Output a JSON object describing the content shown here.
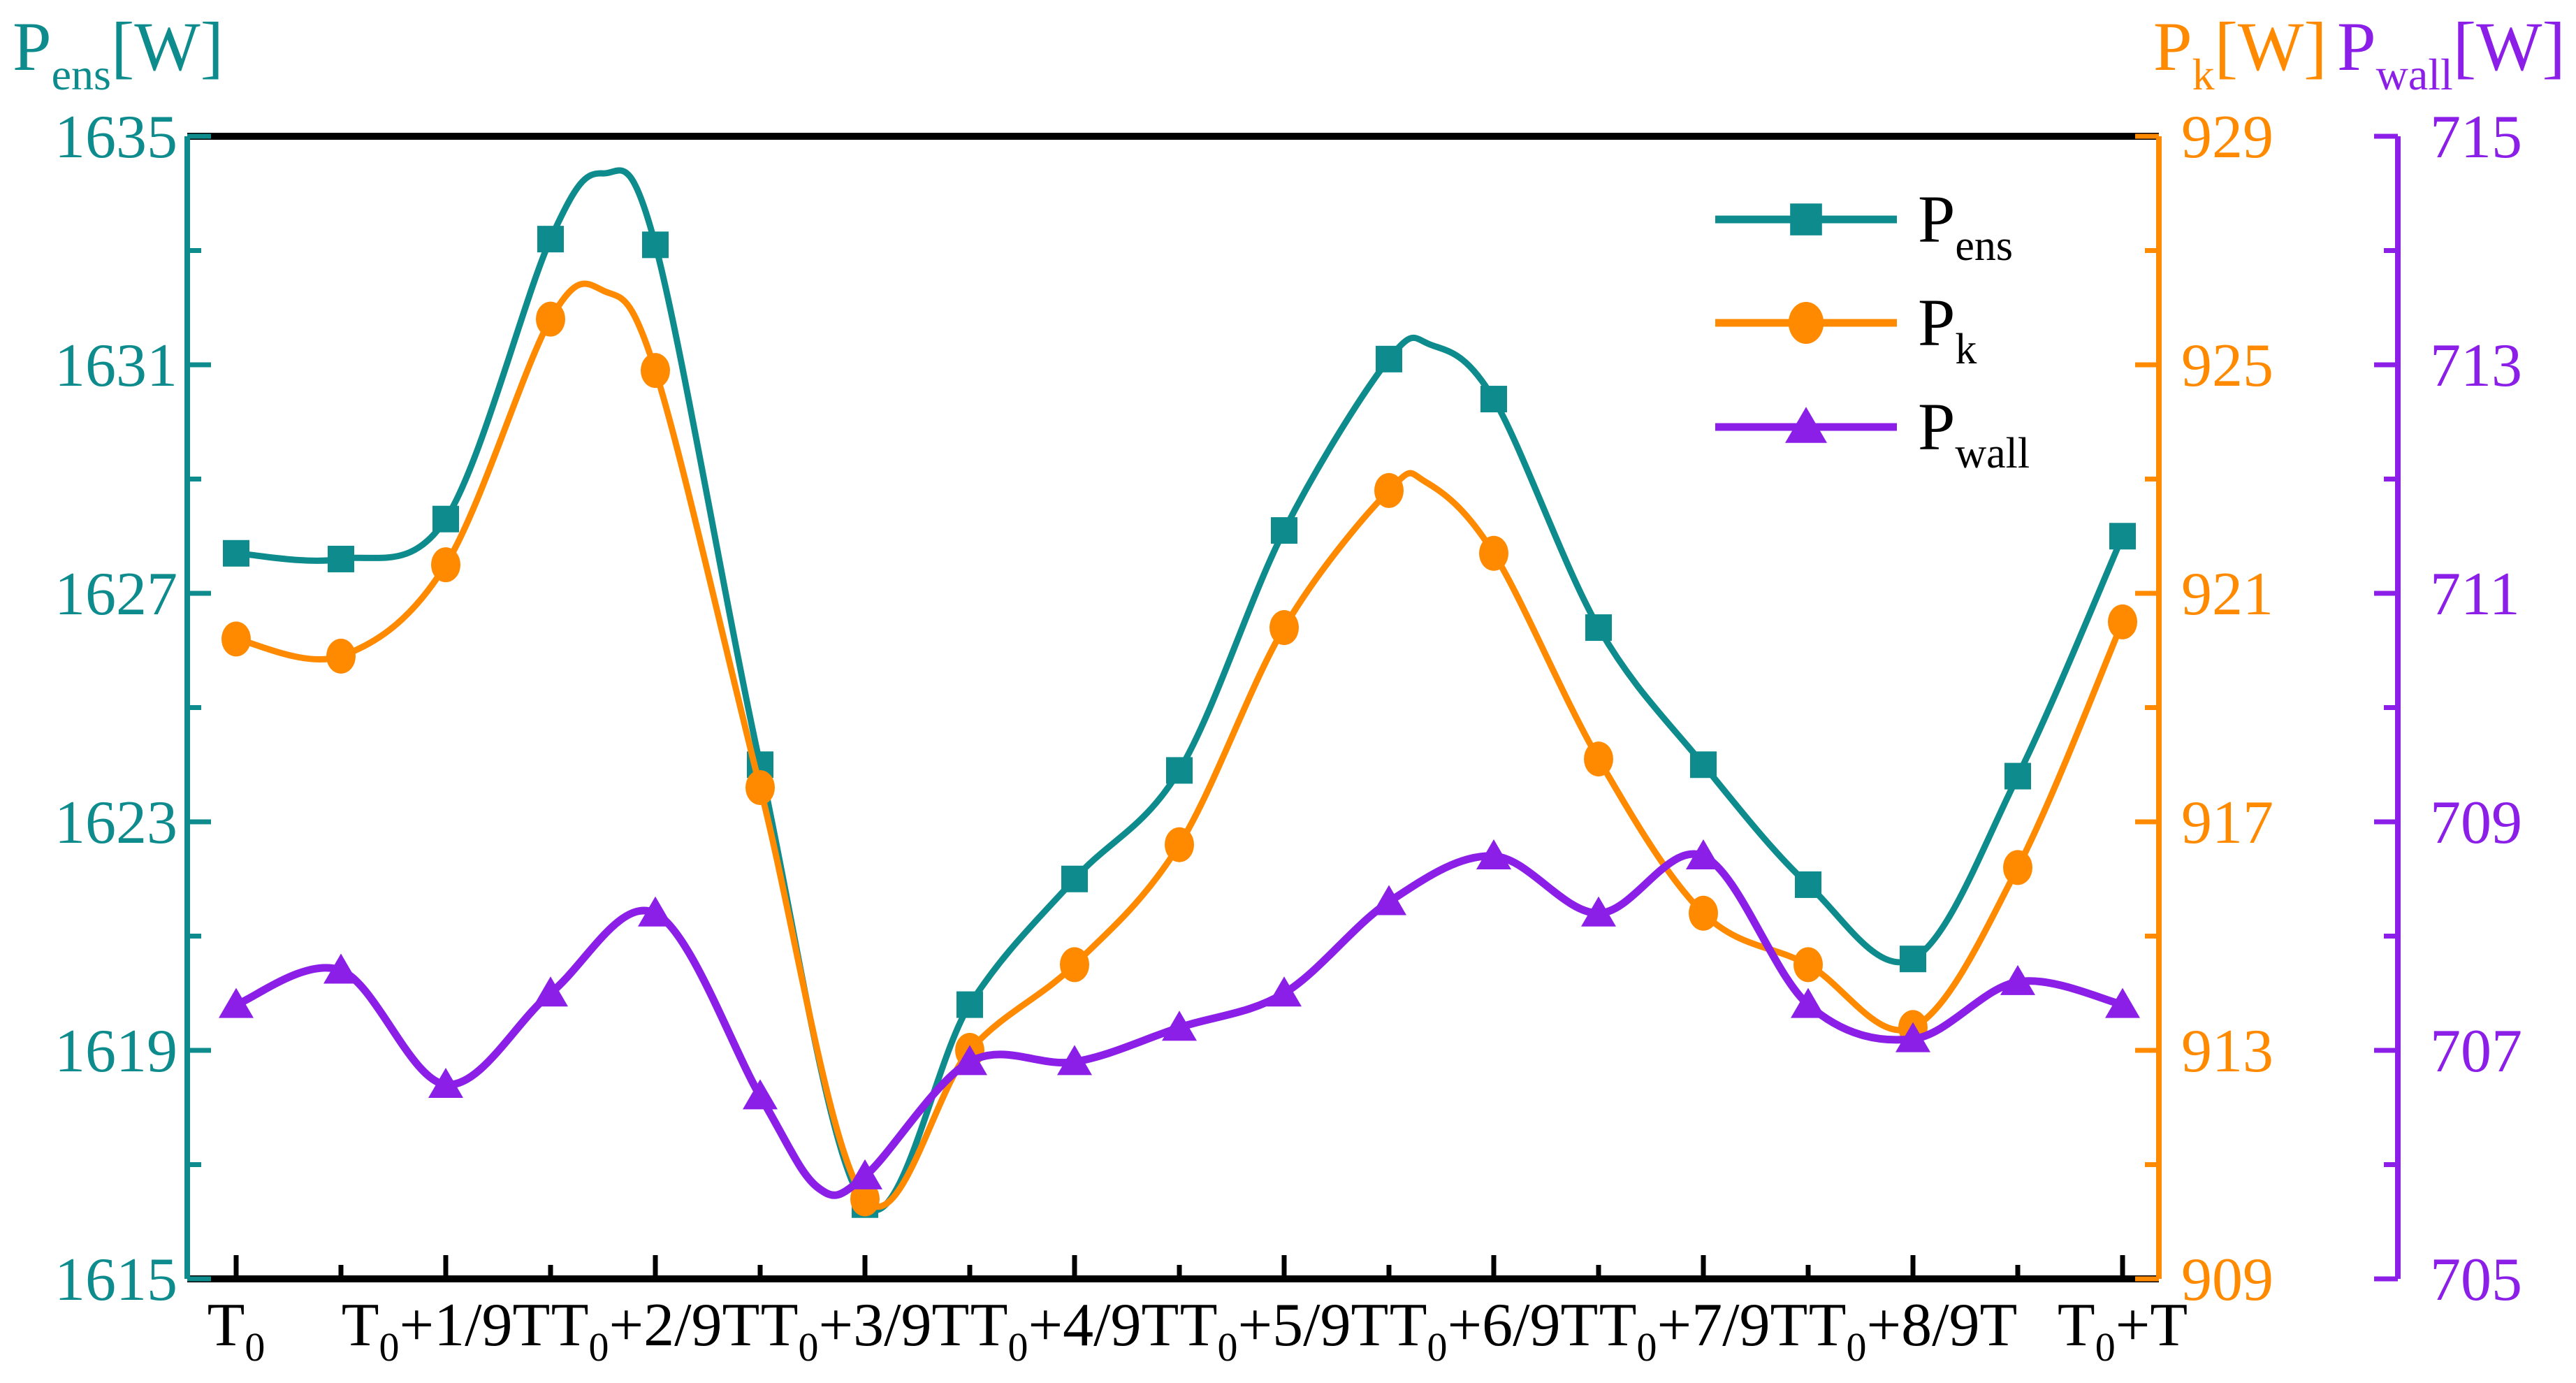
{
  "chart_data": {
    "type": "line",
    "title": "",
    "background": "#ffffff",
    "n_points": 19,
    "x_period_fraction": "1/18 of T between consecutive points",
    "x_tick_labels": [
      {
        "pre": "T",
        "sub": "0",
        "post": ""
      },
      {
        "pre": "T",
        "sub": "0",
        "post": "+1/9T"
      },
      {
        "pre": "T",
        "sub": "0",
        "post": "+2/9T"
      },
      {
        "pre": "T",
        "sub": "0",
        "post": "+3/9T"
      },
      {
        "pre": "T",
        "sub": "0",
        "post": "+4/9T"
      },
      {
        "pre": "T",
        "sub": "0",
        "post": "+5/9T"
      },
      {
        "pre": "T",
        "sub": "0",
        "post": "+6/9T"
      },
      {
        "pre": "T",
        "sub": "0",
        "post": "+7/9T"
      },
      {
        "pre": "T",
        "sub": "0",
        "post": "+8/9T"
      },
      {
        "pre": "T",
        "sub": "0",
        "post": "+T"
      }
    ],
    "axes": {
      "left": {
        "title": {
          "main": "P",
          "sub": "ens",
          "unit": "[W]"
        },
        "color": "#0E8C8D",
        "min": 1615,
        "max": 1635,
        "major_step": 4,
        "minor_step": 2,
        "tick_labels": [
          "1615",
          "1619",
          "1623",
          "1627",
          "1631",
          "1635"
        ]
      },
      "right1": {
        "title": {
          "main": "P",
          "sub": "k",
          "unit": "[W]"
        },
        "color": "#FF8A00",
        "min": 909,
        "max": 929,
        "major_step": 4,
        "minor_step": 2,
        "tick_labels": [
          "909",
          "913",
          "917",
          "921",
          "925",
          "929"
        ]
      },
      "right2": {
        "title": {
          "main": "P",
          "sub": "wall",
          "unit": "[W]"
        },
        "color": "#8B1FE8",
        "min": 705,
        "max": 715,
        "major_step": 2,
        "minor_step": 1,
        "tick_labels": [
          "705",
          "707",
          "709",
          "711",
          "713",
          "715"
        ]
      }
    },
    "series": [
      {
        "name": "P_ens",
        "legend_main": "P",
        "legend_sub": "ens",
        "color": "#0E8C8D",
        "marker": "square",
        "axis": "left",
        "values": [
          1627.7,
          1627.6,
          1628.3,
          1633.2,
          1633.1,
          1624.0,
          1616.3,
          1619.8,
          1622.0,
          1623.9,
          1628.1,
          1631.1,
          1630.4,
          1626.4,
          1624.0,
          1621.9,
          1620.6,
          1623.8,
          1628.0
        ],
        "extra_curve_points": [
          {
            "i": 3.5,
            "v": 1634.35
          },
          {
            "i": 11.4,
            "v": 1631.35
          }
        ]
      },
      {
        "name": "P_k",
        "legend_main": "P",
        "legend_sub": "k",
        "color": "#FF8A00",
        "marker": "circle",
        "axis": "right1",
        "values": [
          920.2,
          919.9,
          921.5,
          925.8,
          924.9,
          917.6,
          910.4,
          913.0,
          914.5,
          916.6,
          920.4,
          922.8,
          921.7,
          918.1,
          915.4,
          914.5,
          913.4,
          916.2,
          920.5
        ],
        "extra_curve_points": [
          {
            "i": 3.5,
            "v": 926.3
          },
          {
            "i": 11.35,
            "v": 922.95
          }
        ]
      },
      {
        "name": "P_wall",
        "legend_main": "P",
        "legend_sub": "wall",
        "color": "#8B1FE8",
        "marker": "triangle",
        "axis": "right2",
        "values": [
          707.4,
          707.7,
          706.7,
          707.5,
          708.2,
          706.6,
          705.9,
          706.9,
          706.9,
          707.2,
          707.5,
          708.3,
          708.7,
          708.2,
          708.7,
          707.4,
          707.1,
          707.6,
          707.4
        ],
        "extra_curve_points": [
          {
            "i": 5.55,
            "v": 705.8
          }
        ]
      }
    ],
    "legend": {
      "position": "inside-top-center-right",
      "entries": [
        {
          "series": "P_ens",
          "main": "P",
          "sub": "ens"
        },
        {
          "series": "P_k",
          "main": "P",
          "sub": "k"
        },
        {
          "series": "P_wall",
          "main": "P",
          "sub": "wall"
        }
      ]
    },
    "grid": false,
    "axis_line_colors": {
      "top_bottom": "#000000",
      "left": "#0E8C8D",
      "right1": "#FF8A00",
      "right2": "#8B1FE8"
    },
    "text_color_legend": "#000000",
    "xlabel": "",
    "ylabel_left": "Pens[W]",
    "ylabel_right1": "Pk[W]",
    "ylabel_right2": "Pwall[W]"
  }
}
